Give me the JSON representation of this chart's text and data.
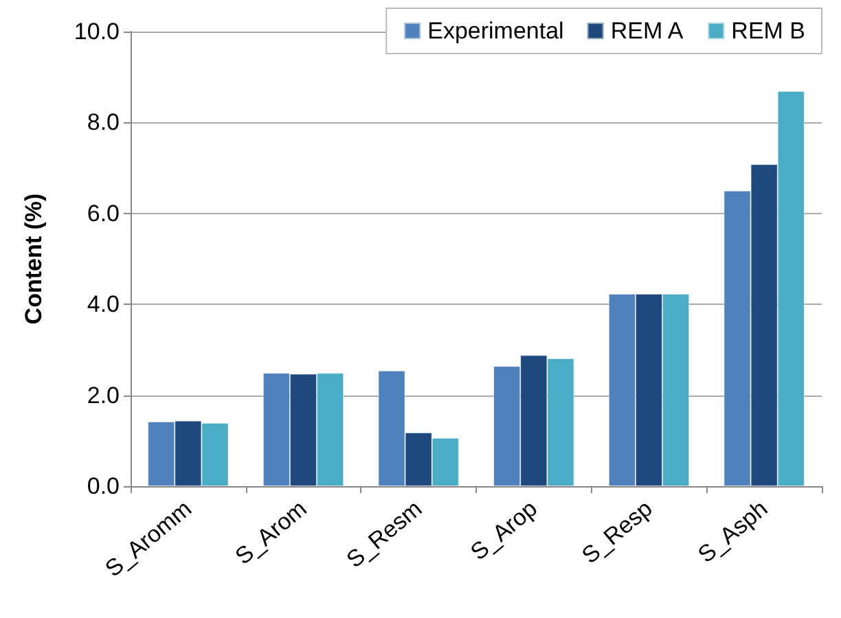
{
  "chart_data": {
    "type": "bar",
    "ylabel": "Content (%)",
    "categories": [
      "S_Aromm",
      "S_Arom",
      "S_Resm",
      "S_Arop",
      "S_Resp",
      "S_Asph"
    ],
    "series": [
      {
        "name": "Experimental",
        "color": "#4f81bd",
        "values": [
          1.42,
          2.49,
          2.54,
          2.64,
          4.23,
          6.5
        ]
      },
      {
        "name": "REM A",
        "color": "#1f497d",
        "values": [
          1.44,
          2.47,
          1.18,
          2.88,
          4.23,
          7.08
        ]
      },
      {
        "name": "REM B",
        "color": "#4bacc6",
        "values": [
          1.39,
          2.49,
          1.06,
          2.81,
          4.23,
          8.69
        ]
      }
    ],
    "ylim": [
      0,
      10
    ],
    "yticks": [
      {
        "value": 0,
        "label": "0.0"
      },
      {
        "value": 2,
        "label": "2.0"
      },
      {
        "value": 4,
        "label": "4.0"
      },
      {
        "value": 6,
        "label": "6.0"
      },
      {
        "value": 8,
        "label": "8.0"
      },
      {
        "value": 10,
        "label": "10.0"
      }
    ],
    "grid": "y",
    "legend": "top right"
  }
}
